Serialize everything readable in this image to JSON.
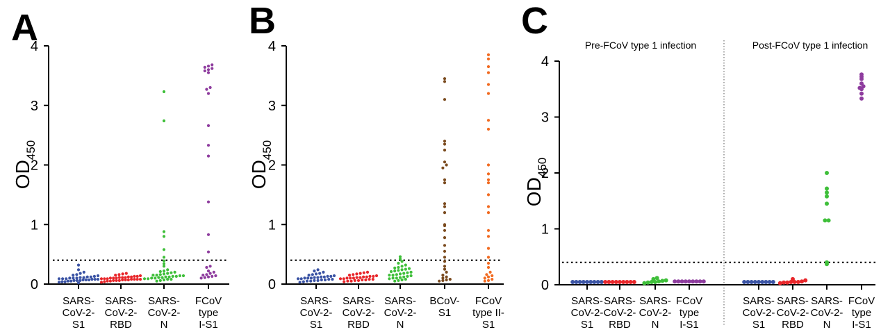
{
  "colors": {
    "blue": "#3a53a4",
    "red": "#e8262a",
    "green": "#3fbf3a",
    "purple": "#8e3c9e",
    "brown": "#7a4a1e",
    "orange": "#f26b21"
  },
  "chart_data": [
    {
      "panel": "A",
      "type": "scatter",
      "ylabel_main": "OD",
      "ylabel_sub": "450",
      "ylim": [
        0,
        4
      ],
      "yticks": [
        "0",
        "1",
        "2",
        "3",
        "4"
      ],
      "threshold": 0.4,
      "categories": [
        {
          "label": [
            "SARS-",
            "CoV-2-",
            "S1"
          ],
          "color": "#3a53a4",
          "values": [
            0.02,
            0.03,
            0.04,
            0.04,
            0.05,
            0.05,
            0.06,
            0.06,
            0.06,
            0.07,
            0.07,
            0.07,
            0.08,
            0.08,
            0.08,
            0.09,
            0.09,
            0.09,
            0.1,
            0.1,
            0.1,
            0.11,
            0.11,
            0.12,
            0.12,
            0.13,
            0.14,
            0.15,
            0.16,
            0.18,
            0.2,
            0.24,
            0.32
          ]
        },
        {
          "label": [
            "SARS-",
            "CoV-2-",
            "RBD"
          ],
          "color": "#e8262a",
          "values": [
            0.03,
            0.04,
            0.05,
            0.05,
            0.06,
            0.06,
            0.06,
            0.07,
            0.07,
            0.07,
            0.08,
            0.08,
            0.08,
            0.08,
            0.09,
            0.09,
            0.09,
            0.1,
            0.1,
            0.1,
            0.11,
            0.11,
            0.11,
            0.12,
            0.12,
            0.13,
            0.13,
            0.14,
            0.15,
            0.16,
            0.17,
            0.18
          ]
        },
        {
          "label": [
            "SARS-",
            "CoV-2-",
            "N"
          ],
          "color": "#3fbf3a",
          "values": [
            0.05,
            0.06,
            0.07,
            0.08,
            0.08,
            0.09,
            0.09,
            0.1,
            0.1,
            0.11,
            0.11,
            0.12,
            0.12,
            0.13,
            0.13,
            0.14,
            0.14,
            0.15,
            0.15,
            0.16,
            0.17,
            0.18,
            0.19,
            0.2,
            0.21,
            0.22,
            0.24,
            0.3,
            0.34,
            0.39,
            0.45,
            0.58,
            0.8,
            0.88,
            2.74,
            3.23
          ]
        },
        {
          "label": [
            "FCoV",
            "type",
            "I-S1"
          ],
          "color": "#8e3c9e",
          "values": [
            0.1,
            0.11,
            0.12,
            0.13,
            0.14,
            0.15,
            0.16,
            0.18,
            0.2,
            0.22,
            0.28,
            0.3,
            0.54,
            0.83,
            1.38,
            2.15,
            2.33,
            2.66,
            3.2,
            3.27,
            3.3,
            3.55,
            3.58,
            3.6,
            3.62,
            3.64,
            3.66,
            3.68
          ]
        }
      ]
    },
    {
      "panel": "B",
      "type": "scatter",
      "ylabel_main": "OD",
      "ylabel_sub": "450",
      "ylim": [
        0,
        4
      ],
      "yticks": [
        "0",
        "1",
        "2",
        "3",
        "4"
      ],
      "threshold": 0.4,
      "categories": [
        {
          "label": [
            "SARS-",
            "CoV-2-",
            "S1"
          ],
          "color": "#3a53a4",
          "values": [
            0.03,
            0.04,
            0.05,
            0.05,
            0.06,
            0.06,
            0.07,
            0.07,
            0.08,
            0.08,
            0.09,
            0.09,
            0.1,
            0.1,
            0.1,
            0.11,
            0.11,
            0.12,
            0.12,
            0.13,
            0.13,
            0.14,
            0.15,
            0.16,
            0.17,
            0.18,
            0.2,
            0.22,
            0.24
          ]
        },
        {
          "label": [
            "SARS-",
            "CoV-2-",
            "RBD"
          ],
          "color": "#e8262a",
          "values": [
            0.04,
            0.05,
            0.05,
            0.06,
            0.06,
            0.07,
            0.07,
            0.08,
            0.08,
            0.09,
            0.09,
            0.1,
            0.1,
            0.1,
            0.11,
            0.11,
            0.12,
            0.12,
            0.13,
            0.13,
            0.14,
            0.15,
            0.16,
            0.17,
            0.18,
            0.19,
            0.2
          ]
        },
        {
          "label": [
            "SARS-",
            "CoV-2-",
            "N"
          ],
          "color": "#3fbf3a",
          "values": [
            0.05,
            0.06,
            0.07,
            0.08,
            0.09,
            0.1,
            0.1,
            0.11,
            0.12,
            0.13,
            0.14,
            0.15,
            0.15,
            0.16,
            0.17,
            0.18,
            0.19,
            0.2,
            0.21,
            0.22,
            0.23,
            0.24,
            0.25,
            0.26,
            0.27,
            0.28,
            0.3,
            0.32,
            0.35,
            0.38,
            0.42,
            0.46
          ]
        },
        {
          "label": [
            "BCoV-",
            "S1"
          ],
          "color": "#7a4a1e",
          "values": [
            0.05,
            0.06,
            0.07,
            0.08,
            0.1,
            0.12,
            0.15,
            0.2,
            0.25,
            0.3,
            0.38,
            0.45,
            0.55,
            0.65,
            0.78,
            0.9,
            0.98,
            1.0,
            1.2,
            1.3,
            1.35,
            1.7,
            1.75,
            1.95,
            2.0,
            2.05,
            2.25,
            2.35,
            2.4,
            3.1,
            3.4,
            3.45
          ]
        },
        {
          "label": [
            "FCoV",
            "type II-",
            "S1"
          ],
          "color": "#f26b21",
          "values": [
            0.05,
            0.06,
            0.08,
            0.1,
            0.12,
            0.14,
            0.16,
            0.2,
            0.28,
            0.35,
            0.45,
            0.6,
            0.8,
            0.9,
            1.2,
            1.3,
            1.5,
            1.7,
            1.75,
            1.85,
            2.0,
            2.6,
            2.75,
            3.2,
            3.35,
            3.55,
            3.65,
            3.78,
            3.85
          ]
        }
      ]
    },
    {
      "panel": "C",
      "type": "scatter",
      "ylabel_main": "OD",
      "ylabel_sub": "450",
      "ylim": [
        0,
        4
      ],
      "yticks": [
        "0",
        "1",
        "2",
        "3",
        "4"
      ],
      "threshold": 0.4,
      "groups": [
        {
          "title": "Pre-FCoV type 1 infection",
          "categories": [
            {
              "label": [
                "SARS-",
                "CoV-2-",
                "S1"
              ],
              "color": "#3a53a4",
              "values": [
                0.05,
                0.05,
                0.05,
                0.05,
                0.05,
                0.05,
                0.05,
                0.05,
                0.05
              ]
            },
            {
              "label": [
                "SARS-",
                "CoV-2-",
                "RBD"
              ],
              "color": "#e8262a",
              "values": [
                0.05,
                0.05,
                0.05,
                0.05,
                0.05,
                0.05,
                0.05,
                0.05,
                0.05
              ]
            },
            {
              "label": [
                "SARS-",
                "CoV-2-",
                "N"
              ],
              "color": "#3fbf3a",
              "values": [
                0.03,
                0.04,
                0.05,
                0.05,
                0.06,
                0.07,
                0.08,
                0.1,
                0.12
              ]
            },
            {
              "label": [
                "FCoV",
                "type",
                "I-S1"
              ],
              "color": "#8e3c9e",
              "values": [
                0.06,
                0.06,
                0.06,
                0.06,
                0.06,
                0.06,
                0.06,
                0.06,
                0.06
              ]
            }
          ]
        },
        {
          "title": "Post-FCoV type 1 infection",
          "categories": [
            {
              "label": [
                "SARS-",
                "CoV-2-",
                "S1"
              ],
              "color": "#3a53a4",
              "values": [
                0.05,
                0.05,
                0.05,
                0.05,
                0.05,
                0.05,
                0.05,
                0.05,
                0.05
              ]
            },
            {
              "label": [
                "SARS-",
                "CoV-2-",
                "RBD"
              ],
              "color": "#e8262a",
              "values": [
                0.03,
                0.04,
                0.04,
                0.05,
                0.05,
                0.05,
                0.06,
                0.08,
                0.1
              ]
            },
            {
              "label": [
                "SARS-",
                "CoV-2-",
                "N"
              ],
              "color": "#3fbf3a",
              "values": [
                0.37,
                0.4,
                1.15,
                1.15,
                1.45,
                1.58,
                1.65,
                1.72,
                2.0
              ]
            },
            {
              "label": [
                "FCoV",
                "type",
                "I-S1"
              ],
              "color": "#8e3c9e",
              "values": [
                3.33,
                3.42,
                3.5,
                3.52,
                3.55,
                3.6,
                3.68,
                3.72,
                3.76
              ]
            }
          ]
        }
      ]
    }
  ]
}
